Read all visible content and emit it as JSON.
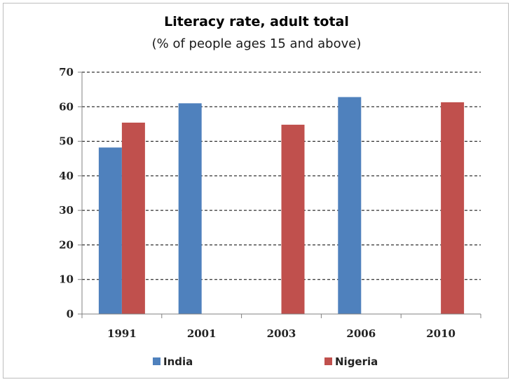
{
  "chart_data": {
    "type": "bar",
    "title": "Literacy rate, adult total",
    "subtitle": "(% of people ages 15 and above)",
    "xlabel": "",
    "ylabel": "",
    "categories": [
      "1991",
      "2001",
      "2003",
      "2006",
      "2010"
    ],
    "series": [
      {
        "name": "India",
        "color": "#4f81bd",
        "values": [
          48.2,
          61.0,
          null,
          62.8,
          null
        ]
      },
      {
        "name": "Nigeria",
        "color": "#c0504d",
        "values": [
          55.4,
          null,
          54.8,
          null,
          61.3
        ]
      }
    ],
    "ylim": [
      0,
      70
    ],
    "yticks": [
      0,
      10,
      20,
      30,
      40,
      50,
      60,
      70
    ],
    "grid": true,
    "grid_style": "dashed",
    "legend_placement": "bottom"
  }
}
